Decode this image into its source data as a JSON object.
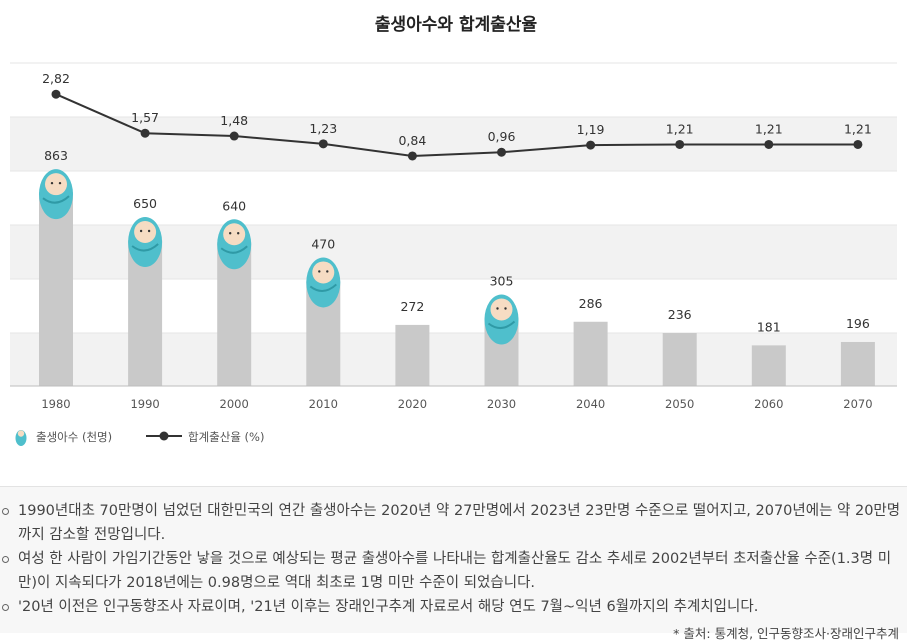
{
  "chart_data": {
    "type": "bar+line",
    "title": "출생아수와 합계출산율",
    "categories": [
      "1980",
      "1990",
      "2000",
      "2010",
      "2020",
      "2030",
      "2040",
      "2050",
      "2060",
      "2070"
    ],
    "series": [
      {
        "name": "출생아수 (천명)",
        "type": "bar",
        "values": [
          863,
          650,
          640,
          470,
          272,
          305,
          286,
          236,
          181,
          196
        ],
        "labels": [
          "863",
          "650",
          "640",
          "470",
          "272",
          "305",
          "286",
          "236",
          "181",
          "196"
        ],
        "baby_icon": [
          true,
          true,
          true,
          true,
          false,
          true,
          false,
          false,
          false,
          false
        ]
      },
      {
        "name": "합계출산율 (%)",
        "type": "line",
        "values": [
          2.82,
          1.57,
          1.48,
          1.23,
          0.84,
          0.96,
          1.19,
          1.21,
          1.21,
          1.21
        ],
        "labels": [
          "2,82",
          "1,57",
          "1,48",
          "1,23",
          "0,84",
          "0,96",
          "1,19",
          "1,21",
          "1,21",
          "1,21"
        ]
      }
    ],
    "legend": {
      "position": "bottom-left"
    },
    "colors": {
      "bar": "#c9c9c9",
      "line": "#333333",
      "baby": "#4fbfcc",
      "band": "#f2f2f2"
    }
  },
  "notes": [
    "1990년대초 70만명이 넘었던 대한민국의 연간 출생아수는 2020년 약 27만명에서 2023년 23만명 수준으로 떨어지고, 2070년에는 약 20만명까지 감소할 전망입니다.",
    "여성 한 사람이 가임기간동안 낳을 것으로 예상되는 평균 출생아수를 나타내는 합계출산율도 감소 추세로 2002년부터 초저출산율 수준(1.3명 미만)이 지속되다가 2018년에는 0.98명으로 역대 최초로 1명 미만 수준이 되었습니다.",
    "'20년 이전은 인구동향조사 자료이며, '21년 이후는 장래인구추계 자료로서 해당 연도 7월~익년 6월까지의 추계치입니다."
  ],
  "source": "* 출처: 통계청, 인구동향조사·장래인구추계"
}
